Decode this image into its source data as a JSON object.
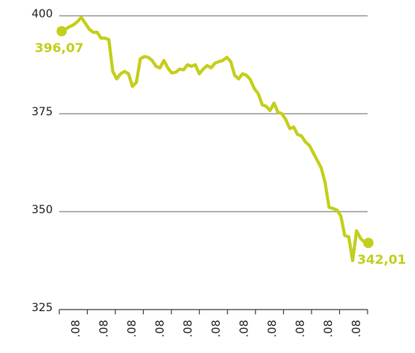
{
  "chart_data": {
    "type": "line",
    "xticklabels": [
      ".08",
      ".08",
      ".08",
      ".08",
      ".08",
      ".08",
      ".08",
      ".08",
      ".08",
      ".08",
      ".08"
    ],
    "series": [
      {
        "color": "#c3cf1c",
        "values": [
          396.07,
          396.6,
          397.2,
          397.7,
          398.5,
          399.6,
          398.1,
          396.6,
          395.8,
          395.8,
          394.3,
          394.3,
          393.9,
          385.8,
          383.9,
          385.2,
          385.8,
          385.2,
          382.0,
          383.0,
          389.0,
          389.6,
          389.4,
          388.6,
          387.1,
          386.7,
          388.6,
          386.7,
          385.4,
          385.6,
          386.4,
          386.2,
          387.5,
          387.1,
          387.5,
          385.2,
          386.4,
          387.3,
          386.7,
          387.9,
          388.3,
          388.6,
          389.4,
          388.3,
          384.8,
          383.9,
          385.2,
          384.8,
          383.7,
          381.4,
          380.1,
          377.3,
          376.9,
          375.8,
          377.7,
          375.4,
          375.0,
          373.5,
          371.2,
          371.6,
          369.7,
          369.3,
          367.8,
          366.9,
          365.0,
          363.1,
          361.2,
          357.4,
          351.1,
          350.8,
          350.4,
          348.9,
          343.9,
          343.6,
          337.5,
          345.1,
          343.2,
          342.2,
          342.01
        ]
      }
    ],
    "start_label": "396,07",
    "end_label": "342,01",
    "ylim": [
      325,
      400
    ],
    "yticks": [
      325,
      350,
      375,
      400
    ],
    "grid": true
  }
}
